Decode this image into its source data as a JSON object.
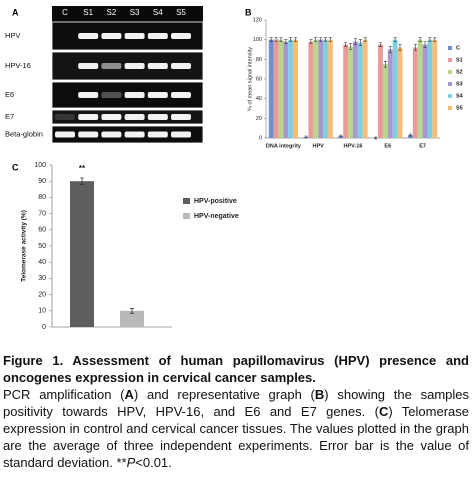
{
  "panel_labels": [
    "A",
    "B",
    "C"
  ],
  "gel": {
    "columns": [
      "C",
      "S1",
      "S2",
      "S3",
      "S4",
      "S5"
    ],
    "rows": [
      "HPV",
      "HPV-16",
      "E6",
      "E7",
      "Beta-globin"
    ]
  },
  "chart_data": [
    {
      "type": "bar",
      "y_label": "% of mean signal intensity",
      "categories": [
        "DNA integrity",
        "HPV",
        "HPV-16",
        "E6",
        "E7"
      ],
      "ylim": [
        0,
        120
      ],
      "yticks": [
        0,
        20,
        40,
        60,
        80,
        100,
        120
      ],
      "legend": "right",
      "series": [
        {
          "name": "C",
          "color": "#6f8fcf",
          "values": [
            100,
            1,
            2,
            0,
            3
          ],
          "errors": [
            2,
            1,
            1,
            1,
            1
          ]
        },
        {
          "name": "S1",
          "color": "#e99a99",
          "values": [
            100,
            98,
            95,
            95,
            92
          ],
          "errors": [
            2,
            2,
            2,
            2,
            3
          ]
        },
        {
          "name": "S2",
          "color": "#b7d68b",
          "values": [
            100,
            100,
            93,
            75,
            100
          ],
          "errors": [
            2,
            2,
            3,
            3,
            2
          ]
        },
        {
          "name": "S3",
          "color": "#a898cf",
          "values": [
            98,
            100,
            98,
            90,
            95
          ],
          "errors": [
            2,
            2,
            3,
            3,
            3
          ]
        },
        {
          "name": "S4",
          "color": "#7fcfe0",
          "values": [
            100,
            100,
            97,
            100,
            100
          ],
          "errors": [
            2,
            2,
            3,
            2,
            2
          ]
        },
        {
          "name": "S5",
          "color": "#f4bd78",
          "values": [
            100,
            100,
            100,
            92,
            100
          ],
          "errors": [
            2,
            2,
            2,
            3,
            2
          ]
        }
      ]
    },
    {
      "type": "bar",
      "y_label": "Telomerase activity (%)",
      "categories": [
        "HPV-positive",
        "HPV-negative"
      ],
      "colors": [
        "#5e5e5e",
        "#b9b9b9"
      ],
      "values": [
        90,
        10
      ],
      "errors": [
        2,
        1.5
      ],
      "annotation": "**",
      "ylim": [
        0,
        100
      ],
      "yticks": [
        0,
        10,
        20,
        30,
        40,
        50,
        60,
        70,
        80,
        90,
        100
      ],
      "legend": "right"
    }
  ],
  "caption": {
    "title": "Figure 1. Assessment of human papillomavirus (HPV) presence and oncogenes expression in cervical cancer samples.",
    "body": [
      "PCR amplification (",
      "A",
      ") and representative graph (",
      "B",
      ") showing the samples positivity towards HPV, HPV-16, and E6 and E7 genes. (",
      "C",
      ") Telomerase expression in control and cervical cancer tissues. The values plotted in the graph are the average of three independent experiments. Error bar is the value of standard deviation. **",
      "P",
      "<0.01."
    ]
  }
}
